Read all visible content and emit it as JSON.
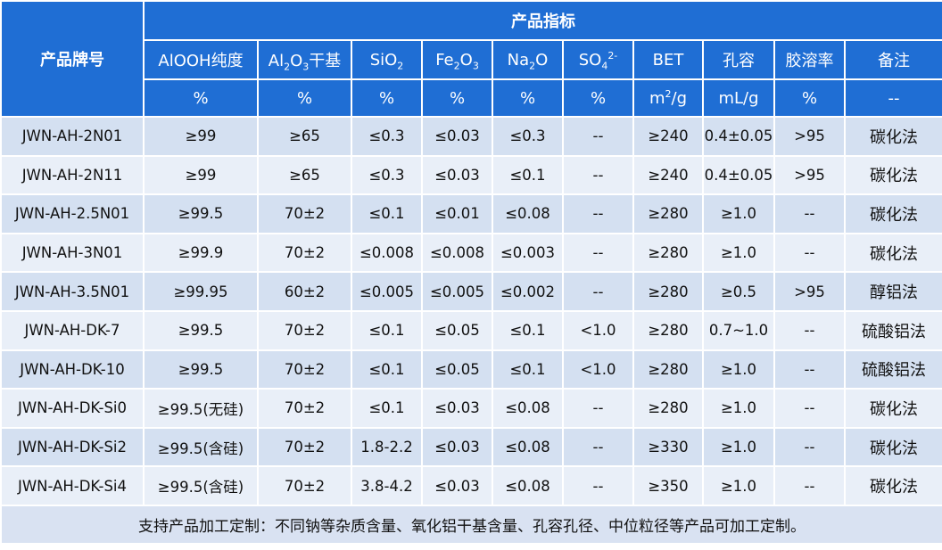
{
  "header": {
    "product_col": "产品牌号",
    "group_title": "产品指标",
    "columns": [
      {
        "label": "AlOOH纯度",
        "unit": "%"
      },
      {
        "label_parts": [
          "Al",
          "2",
          "O",
          "3",
          "干基"
        ],
        "unit": "%"
      },
      {
        "label_parts": [
          "SiO",
          "2"
        ],
        "unit": "%"
      },
      {
        "label_parts": [
          "Fe",
          "2",
          "O",
          "3"
        ],
        "unit": "%"
      },
      {
        "label_parts": [
          "Na",
          "2",
          "O"
        ],
        "unit": "%"
      },
      {
        "label_parts": [
          "SO",
          "4",
          "2-"
        ],
        "unit": "%"
      },
      {
        "label": "BET",
        "unit_parts": [
          "m",
          "2",
          "/g"
        ]
      },
      {
        "label": "孔容",
        "unit": "mL/g"
      },
      {
        "label": "胶溶率",
        "unit": "%"
      },
      {
        "label": "备注",
        "unit": "--"
      }
    ]
  },
  "rows": [
    {
      "name": "JWN-AH-2N01",
      "values": [
        "≥99",
        "≥65",
        "≤0.3",
        "≤0.03",
        "≤0.3",
        "--",
        "≥240",
        "0.4±0.05",
        ">95",
        "碳化法"
      ]
    },
    {
      "name": "JWN-AH-2N11",
      "values": [
        "≥99",
        "≥65",
        "≤0.3",
        "≤0.03",
        "≤0.1",
        "--",
        "≥240",
        "0.4±0.05",
        ">95",
        "碳化法"
      ]
    },
    {
      "name": "JWN-AH-2.5N01",
      "values": [
        "≥99.5",
        "70±2",
        "≤0.1",
        "≤0.01",
        "≤0.08",
        "--",
        "≥280",
        "≥1.0",
        "--",
        "碳化法"
      ]
    },
    {
      "name": "JWN-AH-3N01",
      "values": [
        "≥99.9",
        "70±2",
        "≤0.008",
        "≤0.008",
        "≤0.003",
        "--",
        "≥280",
        "≥1.0",
        "--",
        "碳化法"
      ]
    },
    {
      "name": "JWN-AH-3.5N01",
      "values": [
        "≥99.95",
        "60±2",
        "≤0.005",
        "≤0.005",
        "≤0.002",
        "--",
        "≥280",
        "≥0.5",
        ">95",
        "醇铝法"
      ]
    },
    {
      "name": "JWN-AH-DK-7",
      "values": [
        "≥99.5",
        "70±2",
        "≤0.1",
        "≤0.05",
        "≤0.1",
        "<1.0",
        "≥280",
        "0.7~1.0",
        "--",
        "硫酸铝法"
      ]
    },
    {
      "name": "JWN-AH-DK-10",
      "values": [
        "≥99.5",
        "70±2",
        "≤0.1",
        "≤0.05",
        "≤0.1",
        "<1.0",
        "≥280",
        "≥1.0",
        "--",
        "硫酸铝法"
      ]
    },
    {
      "name": "JWN-AH-DK-Si0",
      "values": [
        "≥99.5(无硅)",
        "70±2",
        "≤0.1",
        "≤0.03",
        "≤0.08",
        "--",
        "≥280",
        "≥1.0",
        "--",
        "碳化法"
      ]
    },
    {
      "name": "JWN-AH-DK-Si2",
      "values": [
        "≥99.5(含硅)",
        "70±2",
        "1.8-2.2",
        "≤0.03",
        "≤0.08",
        "--",
        "≥330",
        "≥1.0",
        "--",
        "碳化法"
      ]
    },
    {
      "name": "JWN-AH-DK-Si4",
      "values": [
        "≥99.5(含硅)",
        "70±2",
        "3.8-4.2",
        "≤0.03",
        "≤0.08",
        "--",
        "≥350",
        "≥1.0",
        "--",
        "碳化法"
      ]
    }
  ],
  "footer": "支持产品加工定制：不同钠等杂质含量、氧化铝干基含量、孔容孔径、中位粒径等产品可加工定制。",
  "colors": {
    "header_bg": "#1f6ed4",
    "row_odd": "#d4e0f1",
    "row_even": "#e9eff8",
    "footer_bg": "#d9e2f2"
  }
}
